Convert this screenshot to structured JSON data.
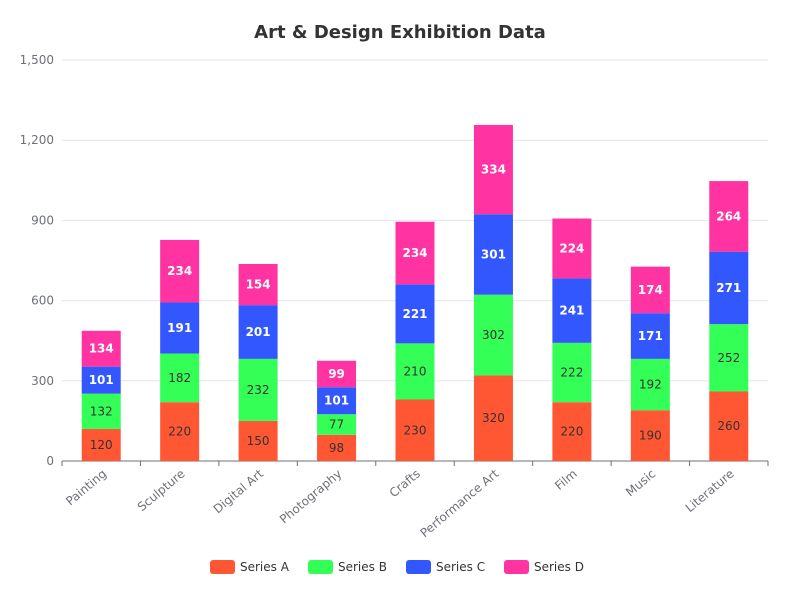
{
  "chart_data": {
    "type": "bar",
    "stacked": true,
    "title": "Art & Design Exhibition Data",
    "xlabel": "",
    "ylabel": "",
    "categories": [
      "Painting",
      "Sculpture",
      "Digital Art",
      "Photography",
      "Crafts",
      "Performance Art",
      "Film",
      "Music",
      "Literature"
    ],
    "series": [
      {
        "name": "Series A",
        "color": "#ff5733",
        "label_color": "#333333",
        "values": [
          120,
          220,
          150,
          98,
          230,
          320,
          220,
          190,
          260
        ]
      },
      {
        "name": "Series B",
        "color": "#33ff57",
        "label_color": "#333333",
        "values": [
          132,
          182,
          232,
          77,
          210,
          302,
          222,
          192,
          252
        ]
      },
      {
        "name": "Series C",
        "color": "#3357ff",
        "label_color": "#ffffff",
        "values": [
          101,
          191,
          201,
          101,
          221,
          301,
          241,
          171,
          271
        ]
      },
      {
        "name": "Series D",
        "color": "#ff33a1",
        "label_color": "#ffffff",
        "values": [
          134,
          234,
          154,
          99,
          234,
          334,
          224,
          174,
          264
        ]
      }
    ],
    "ylim": [
      0,
      1500
    ],
    "yticks": [
      0,
      300,
      600,
      900,
      1200,
      1500
    ],
    "ytick_labels": [
      "0",
      "300",
      "600",
      "900",
      "1,200",
      "1,500"
    ],
    "grid": true,
    "legend_position": "bottom-center"
  }
}
